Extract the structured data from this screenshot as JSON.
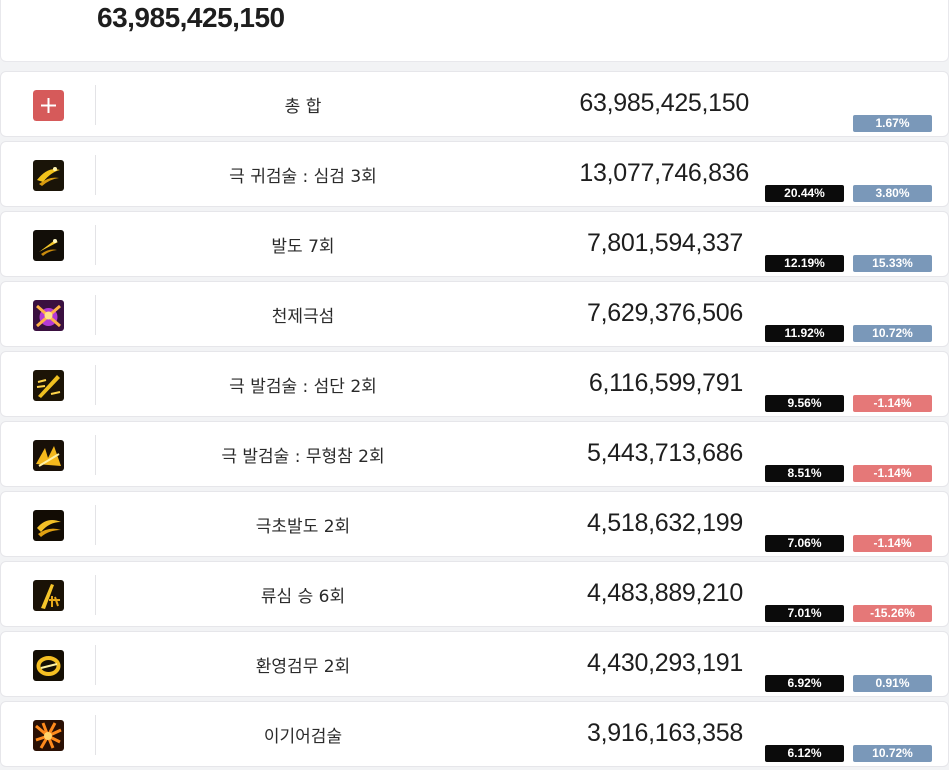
{
  "header": {
    "total": "63,985,425,150"
  },
  "colors": {
    "accent_red": "#d9534f",
    "share_badge_bg": "#0b0b0b",
    "diff_positive_bg": "#7a98b9",
    "diff_negative_bg": "#e57878"
  },
  "rows": [
    {
      "icon": "plus-icon",
      "name": "총 합",
      "damage": "63,985,425,150",
      "share": null,
      "diff": "1.67%",
      "diff_dir": "up"
    },
    {
      "icon": "gwigeom-slash-icon",
      "name": "극 귀검술 : 심검 3회",
      "damage": "13,077,746,836",
      "share": "20.44%",
      "diff": "3.80%",
      "diff_dir": "up"
    },
    {
      "icon": "baldo-icon",
      "name": "발도 7회",
      "damage": "7,801,594,337",
      "share": "12.19%",
      "diff": "15.33%",
      "diff_dir": "up"
    },
    {
      "icon": "cheonje-geukseom-icon",
      "name": "천제극섬",
      "damage": "7,629,376,506",
      "share": "11.92%",
      "diff": "10.72%",
      "diff_dir": "up"
    },
    {
      "icon": "seomdan-icon",
      "name": "극 발검술 : 섬단 2회",
      "damage": "6,116,599,791",
      "share": "9.56%",
      "diff": "-1.14%",
      "diff_dir": "down"
    },
    {
      "icon": "muhyeongcham-icon",
      "name": "극 발검술 : 무형참 2회",
      "damage": "5,443,713,686",
      "share": "8.51%",
      "diff": "-1.14%",
      "diff_dir": "down"
    },
    {
      "icon": "geukchobaldo-icon",
      "name": "극초발도 2회",
      "damage": "4,518,632,199",
      "share": "7.06%",
      "diff": "-1.14%",
      "diff_dir": "down"
    },
    {
      "icon": "ryusim-seung-icon",
      "name": "류심 승 6회",
      "damage": "4,483,889,210",
      "share": "7.01%",
      "diff": "-15.26%",
      "diff_dir": "down"
    },
    {
      "icon": "hwanyeong-geommu-icon",
      "name": "환영검무 2회",
      "damage": "4,430,293,191",
      "share": "6.92%",
      "diff": "0.91%",
      "diff_dir": "up"
    },
    {
      "icon": "igieo-geomsul-icon",
      "name": "이기어검술",
      "damage": "3,916,163,358",
      "share": "6.12%",
      "diff": "10.72%",
      "diff_dir": "up"
    }
  ]
}
